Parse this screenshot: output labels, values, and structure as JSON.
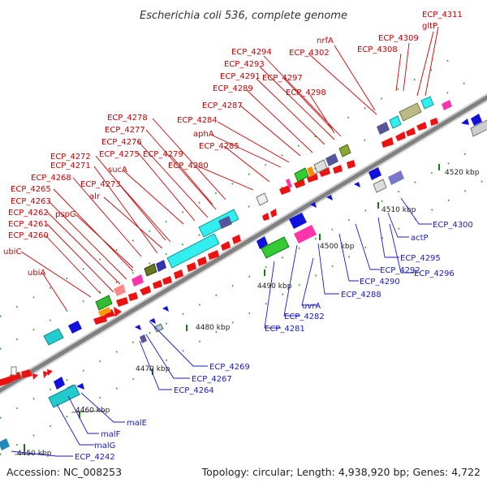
{
  "title": "Escherichia coli 536, complete genome",
  "footer": {
    "accession": "Accession: NC_008253",
    "topology": "Topology: circular; Length: 4,938,920 bp; Genes: 4,722"
  },
  "kbp_labels": [
    "4450 kbp",
    "4460 kbp",
    "4470 kbp",
    "4480 kbp",
    "4490 kbp",
    "4500 kbp",
    "4510 kbp",
    "4520 kbp"
  ],
  "top_labels": [
    "ECP_4311",
    "gltP",
    "ECP_4309",
    "ECP_4308",
    "nrfA",
    "ECP_4302",
    "ECP_4294",
    "ECP_4293",
    "ECP_4291",
    "ECP_4297",
    "ECP_4289",
    "ECP_4298",
    "ECP_4287",
    "ECP_4278",
    "ECP_4284",
    "ECP_4277",
    "aphA",
    "ECP_4276",
    "ECP_4285",
    "ECP_4275",
    "ECP_4279",
    "ECP_4272",
    "ECP_4280",
    "ECP_4271",
    "sucA",
    "ECP_4268",
    "ECP_4273",
    "ECP_4265",
    "alr",
    "ECP_4263",
    "pspG",
    "ECP_4262",
    "ECP_4261",
    "ECP_4260",
    "ubiC",
    "ubiA"
  ],
  "bottom_labels": [
    "ECP_4300",
    "actP",
    "ECP_4295",
    "ECP_4296",
    "ECP_4292",
    "ECP_4290",
    "ECP_4288",
    "uvrA",
    "ECP_4282",
    "ECP_4281",
    "ECP_4269",
    "ECP_4267",
    "ECP_4264",
    "malE",
    "malF",
    "malG",
    "ECP_4242"
  ],
  "colors": {
    "top_label": "#cc0000",
    "bottom_label": "#1a1acc",
    "forward_gene": "#ee1111",
    "reverse_gene": "#1111dd",
    "backbone": "#888888",
    "tick": "#339933"
  }
}
